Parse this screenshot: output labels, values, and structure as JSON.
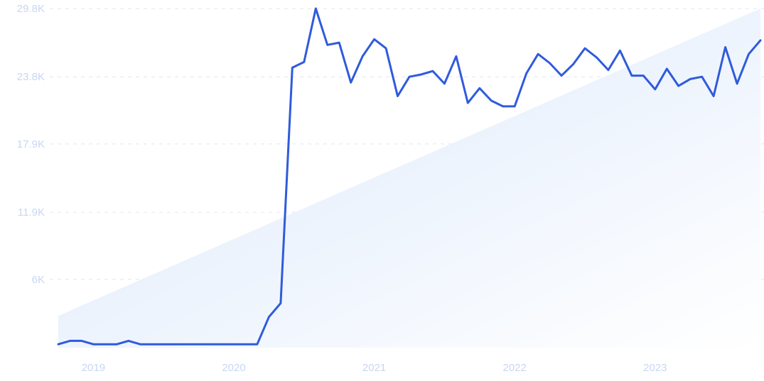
{
  "chart_data": {
    "type": "line",
    "title": "",
    "xlabel": "",
    "ylabel": "",
    "y_ticks": [
      "6K",
      "11.9K",
      "17.9K",
      "23.8K",
      "29.8K"
    ],
    "y_tick_values": [
      6000,
      11900,
      17900,
      23800,
      29800
    ],
    "ylim": [
      0,
      29800
    ],
    "x_ticks": [
      "2019",
      "2020",
      "2021",
      "2022",
      "2023"
    ],
    "xlim": [
      "2018-10",
      "2023-10"
    ],
    "grid": "horizontal-dashed",
    "colors": {
      "line": "#2f5bdb",
      "tick_text": "#c9d6f2",
      "grid": "#dfe6f3",
      "trend_fill_start": "#dbe8fb",
      "trend_fill_end": "#ffffff"
    },
    "trend_band": {
      "start_value": 2800,
      "end_value": 29800
    },
    "series": [
      {
        "x": [
          "2018-10",
          "2018-11",
          "2018-12",
          "2019-01",
          "2019-02",
          "2019-03",
          "2019-04",
          "2019-05",
          "2019-06",
          "2019-07",
          "2019-08",
          "2019-09",
          "2019-10",
          "2019-11",
          "2019-12",
          "2020-01",
          "2020-02",
          "2020-03",
          "2020-04",
          "2020-05",
          "2020-06",
          "2020-07",
          "2020-08",
          "2020-09",
          "2020-10",
          "2020-11",
          "2020-12",
          "2021-01",
          "2021-02",
          "2021-03",
          "2021-04",
          "2021-05",
          "2021-06",
          "2021-07",
          "2021-08",
          "2021-09",
          "2021-10",
          "2021-11",
          "2021-12",
          "2022-01",
          "2022-02",
          "2022-03",
          "2022-04",
          "2022-05",
          "2022-06",
          "2022-07",
          "2022-08",
          "2022-09",
          "2022-10",
          "2022-11",
          "2022-12",
          "2023-01",
          "2023-02",
          "2023-03",
          "2023-04",
          "2023-05",
          "2023-06",
          "2023-07",
          "2023-08",
          "2023-09",
          "2023-10"
        ],
        "values": [
          300,
          600,
          600,
          300,
          300,
          300,
          600,
          300,
          300,
          300,
          300,
          300,
          300,
          300,
          300,
          300,
          300,
          300,
          2700,
          3900,
          24600,
          25100,
          29800,
          26600,
          26800,
          23300,
          25600,
          27100,
          26300,
          22100,
          23800,
          24000,
          24300,
          23200,
          25600,
          21500,
          22800,
          21700,
          21200,
          21200,
          24100,
          25800,
          25000,
          23900,
          24900,
          26300,
          25500,
          24400,
          26100,
          23900,
          23900,
          22700,
          24500,
          23000,
          23600,
          23800,
          22100,
          26400,
          23200,
          25800,
          27000
        ]
      }
    ]
  }
}
